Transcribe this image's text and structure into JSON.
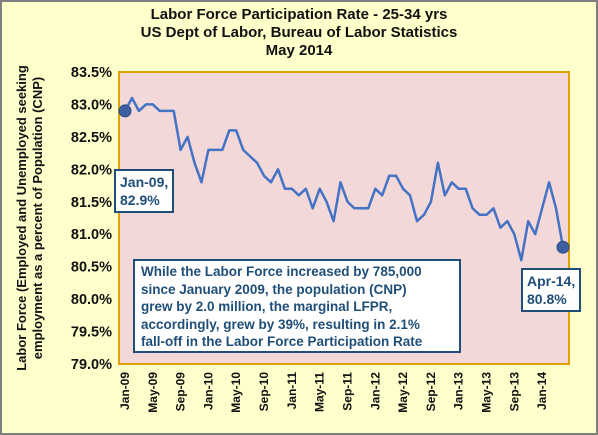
{
  "chart_data": {
    "type": "line",
    "title": [
      "Labor Force Participation Rate - 25-34 yrs",
      "US Dept of Labor, Bureau of Labor Statistics",
      "May 2014"
    ],
    "ylabel": [
      "Labor Force (Employed and Unemployed seeking",
      "employment as a percent of Population (CNP)"
    ],
    "xlabel": "",
    "ylim": [
      79.0,
      83.5
    ],
    "yticks": [
      "83.5%",
      "83.0%",
      "82.5%",
      "82.0%",
      "81.5%",
      "81.0%",
      "80.5%",
      "80.0%",
      "79.5%",
      "79.0%"
    ],
    "xticks": [
      "Jan-09",
      "May-09",
      "Sep-09",
      "Jan-10",
      "May-10",
      "Sep-10",
      "Jan-11",
      "May-11",
      "Sep-11",
      "Jan-12",
      "May-12",
      "Sep-12",
      "Jan-13",
      "May-13",
      "Sep-13",
      "Jan-14"
    ],
    "grid": false,
    "series": [
      {
        "name": "",
        "color": "#4472c4",
        "start": "Jan-09",
        "values": [
          82.9,
          83.1,
          82.9,
          83.0,
          83.0,
          82.9,
          82.9,
          82.9,
          82.3,
          82.5,
          82.1,
          81.8,
          82.3,
          82.3,
          82.3,
          82.6,
          82.6,
          82.3,
          82.2,
          82.1,
          81.9,
          81.8,
          82.0,
          81.7,
          81.7,
          81.6,
          81.7,
          81.4,
          81.7,
          81.5,
          81.2,
          81.8,
          81.5,
          81.4,
          81.4,
          81.4,
          81.7,
          81.6,
          81.9,
          81.9,
          81.7,
          81.6,
          81.2,
          81.3,
          81.5,
          82.1,
          81.6,
          81.8,
          81.7,
          81.7,
          81.4,
          81.3,
          81.3,
          81.4,
          81.1,
          81.2,
          81.0,
          80.6,
          81.2,
          81.0,
          81.4,
          81.8,
          81.4,
          80.8
        ]
      }
    ],
    "annotations": [
      {
        "lines": [
          "Jan-09,",
          "82.9%"
        ],
        "x": "Jan-09",
        "y": 82.9
      },
      {
        "lines": [
          "Apr-14,",
          "80.8%"
        ],
        "x": "Apr-14",
        "y": 80.8
      },
      {
        "lines": [
          "While the Labor Force increased by 785,000",
          "since January  2009, the population (CNP)",
          "grew by 2.0 million, the marginal LFPR,",
          "accordingly, grew by 39%, resulting in 2.1%",
          "fall-off in the Labor Force Participation Rate"
        ]
      }
    ]
  }
}
